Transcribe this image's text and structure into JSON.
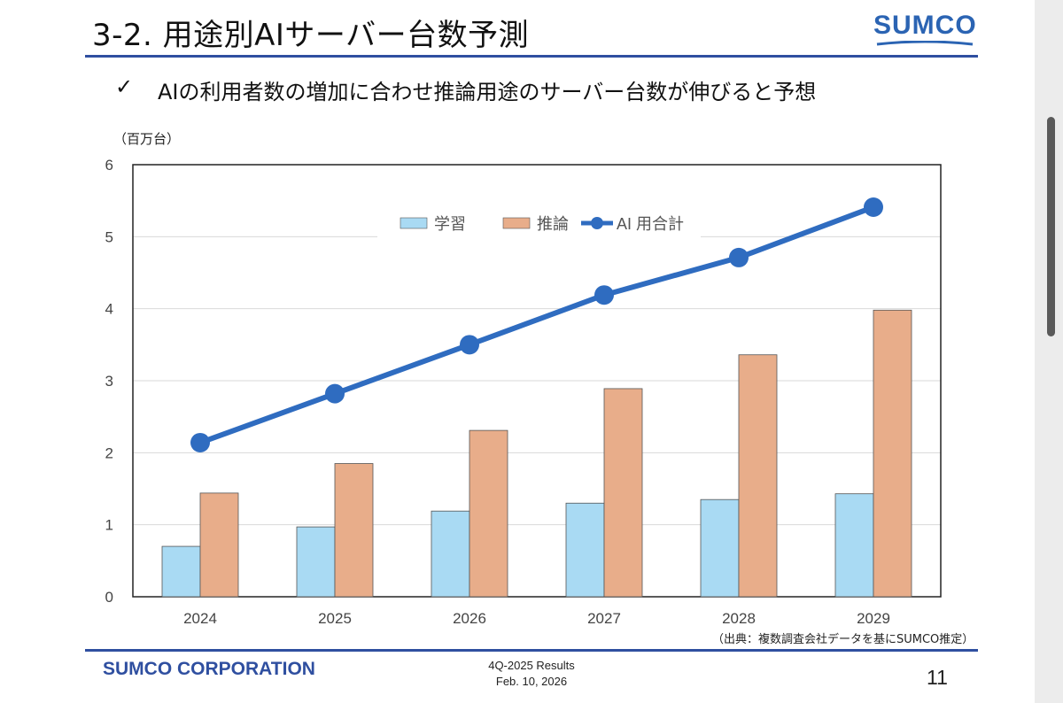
{
  "header": {
    "title": "3-2. 用途別AIサーバー台数予測",
    "logo_text": "SUMCO"
  },
  "subtitle": {
    "check_mark": "✓",
    "text": "AIの利用者数の増加に合わせ推論用途のサーバー台数が伸びると予想"
  },
  "chart_data": {
    "type": "bar",
    "unit_label": "（百万台）",
    "categories": [
      "2024",
      "2025",
      "2026",
      "2027",
      "2028",
      "2029"
    ],
    "ylim": [
      0,
      6
    ],
    "yticks": [
      "0",
      "1",
      "2",
      "3",
      "4",
      "5",
      "6"
    ],
    "grid": true,
    "legend_position": "top",
    "series": [
      {
        "name": "学習",
        "type": "bar",
        "color": "#a9daf3",
        "values": [
          0.7,
          0.97,
          1.19,
          1.3,
          1.35,
          1.43
        ]
      },
      {
        "name": "推論",
        "type": "bar",
        "color": "#e8ad8a",
        "values": [
          1.44,
          1.85,
          2.31,
          2.89,
          3.36,
          3.98
        ]
      },
      {
        "name": "AI 用合計",
        "type": "line",
        "color": "#2f6cc0",
        "values": [
          2.14,
          2.82,
          3.5,
          4.19,
          4.71,
          5.41
        ]
      }
    ],
    "source_note": "（出典：複数調査会社データを基にSUMCO推定）"
  },
  "footer": {
    "company": "SUMCO CORPORATION",
    "results": "4Q-2025 Results",
    "date": "Feb. 10, 2026",
    "page_number": "11"
  }
}
